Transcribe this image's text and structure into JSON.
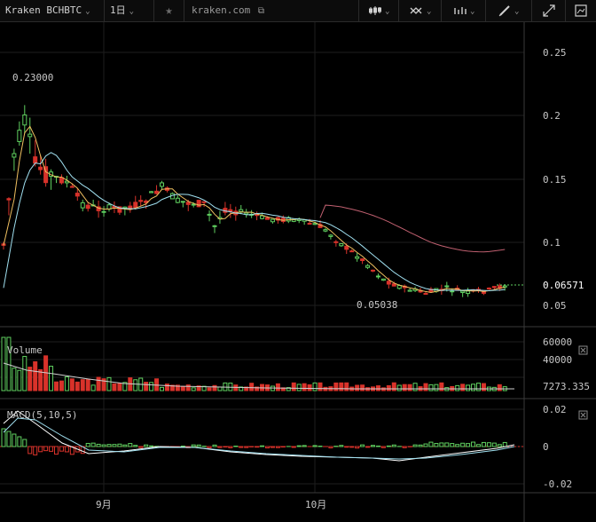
{
  "toolbar": {
    "symbol": "Kraken BCHBTC",
    "interval": "1日",
    "star_icon": "star-icon",
    "site": "kraken.com",
    "external_icon": "external-link-icon",
    "candle_icon": "candlestick-icon",
    "indicator_icon": "indicator-icon",
    "chart_type_icon": "chart-type-icon",
    "draw_icon": "pencil-icon",
    "fullscreen_icon": "fullscreen-icon",
    "screenshot_icon": "screenshot-icon"
  },
  "colors": {
    "up": "#5fcf5f",
    "down": "#d8322a",
    "ma_fast": "#f0c060",
    "ma_mid": "#a0e0f0",
    "ma_slow": "#c06070",
    "grid": "#1e1e1e"
  },
  "chart_data": {
    "type": "candlestick",
    "symbol": "Kraken BCHBTC",
    "price_axis_ticks": [
      "0.25",
      "0.2",
      "0.15",
      "0.1",
      "0.05"
    ],
    "price_ylim": [
      0.03,
      0.27
    ],
    "last_price": "0.06571",
    "high_label": "0.23000",
    "low_label": "0.05038",
    "x_tick_labels": [
      "9月",
      "10月"
    ],
    "volume": {
      "title": "Volume",
      "ticks": [
        "60000",
        "40000"
      ],
      "last": "7273.335",
      "ylim": [
        0,
        70000
      ]
    },
    "macd": {
      "title": "MACD(5,10,5)",
      "ticks": [
        "0.02",
        "0",
        "-0.02"
      ],
      "ylim": [
        -0.028,
        0.028
      ]
    }
  }
}
